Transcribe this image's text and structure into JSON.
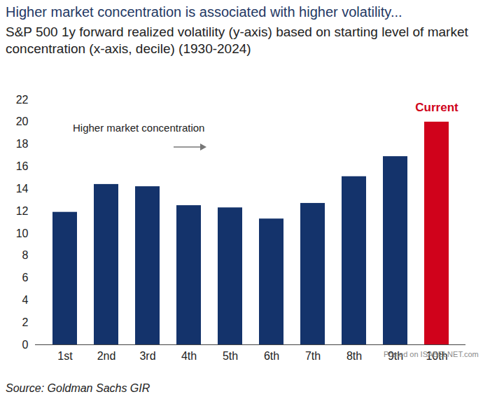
{
  "chart_data": {
    "type": "bar",
    "title": "Higher market concentration is associated with higher volatility...",
    "subtitle": "S&P 500 1y forward realized volatility (y-axis) based on starting level of market concentration (x-axis, decile) (1930-2024)",
    "categories": [
      "1st",
      "2nd",
      "3rd",
      "4th",
      "5th",
      "6th",
      "7th",
      "8th",
      "9th",
      "10th"
    ],
    "values": [
      11.9,
      14.4,
      14.2,
      12.5,
      12.3,
      11.3,
      12.7,
      15.1,
      16.9,
      20.0
    ],
    "colors": [
      "#14336b",
      "#14336b",
      "#14336b",
      "#14336b",
      "#14336b",
      "#14336b",
      "#14336b",
      "#14336b",
      "#14336b",
      "#d0021b"
    ],
    "ylim": [
      0,
      22
    ],
    "yticks": [
      0,
      2,
      4,
      6,
      8,
      10,
      12,
      14,
      16,
      18,
      20,
      22
    ],
    "grid": false,
    "annotations": [
      {
        "text": "Higher market concentration",
        "type": "arrow"
      },
      {
        "text": "Current",
        "category": "10th",
        "color": "#d0021b"
      }
    ],
    "source": "Source: Goldman Sachs GIR",
    "watermark": "Posted on ISABELNET.com"
  }
}
